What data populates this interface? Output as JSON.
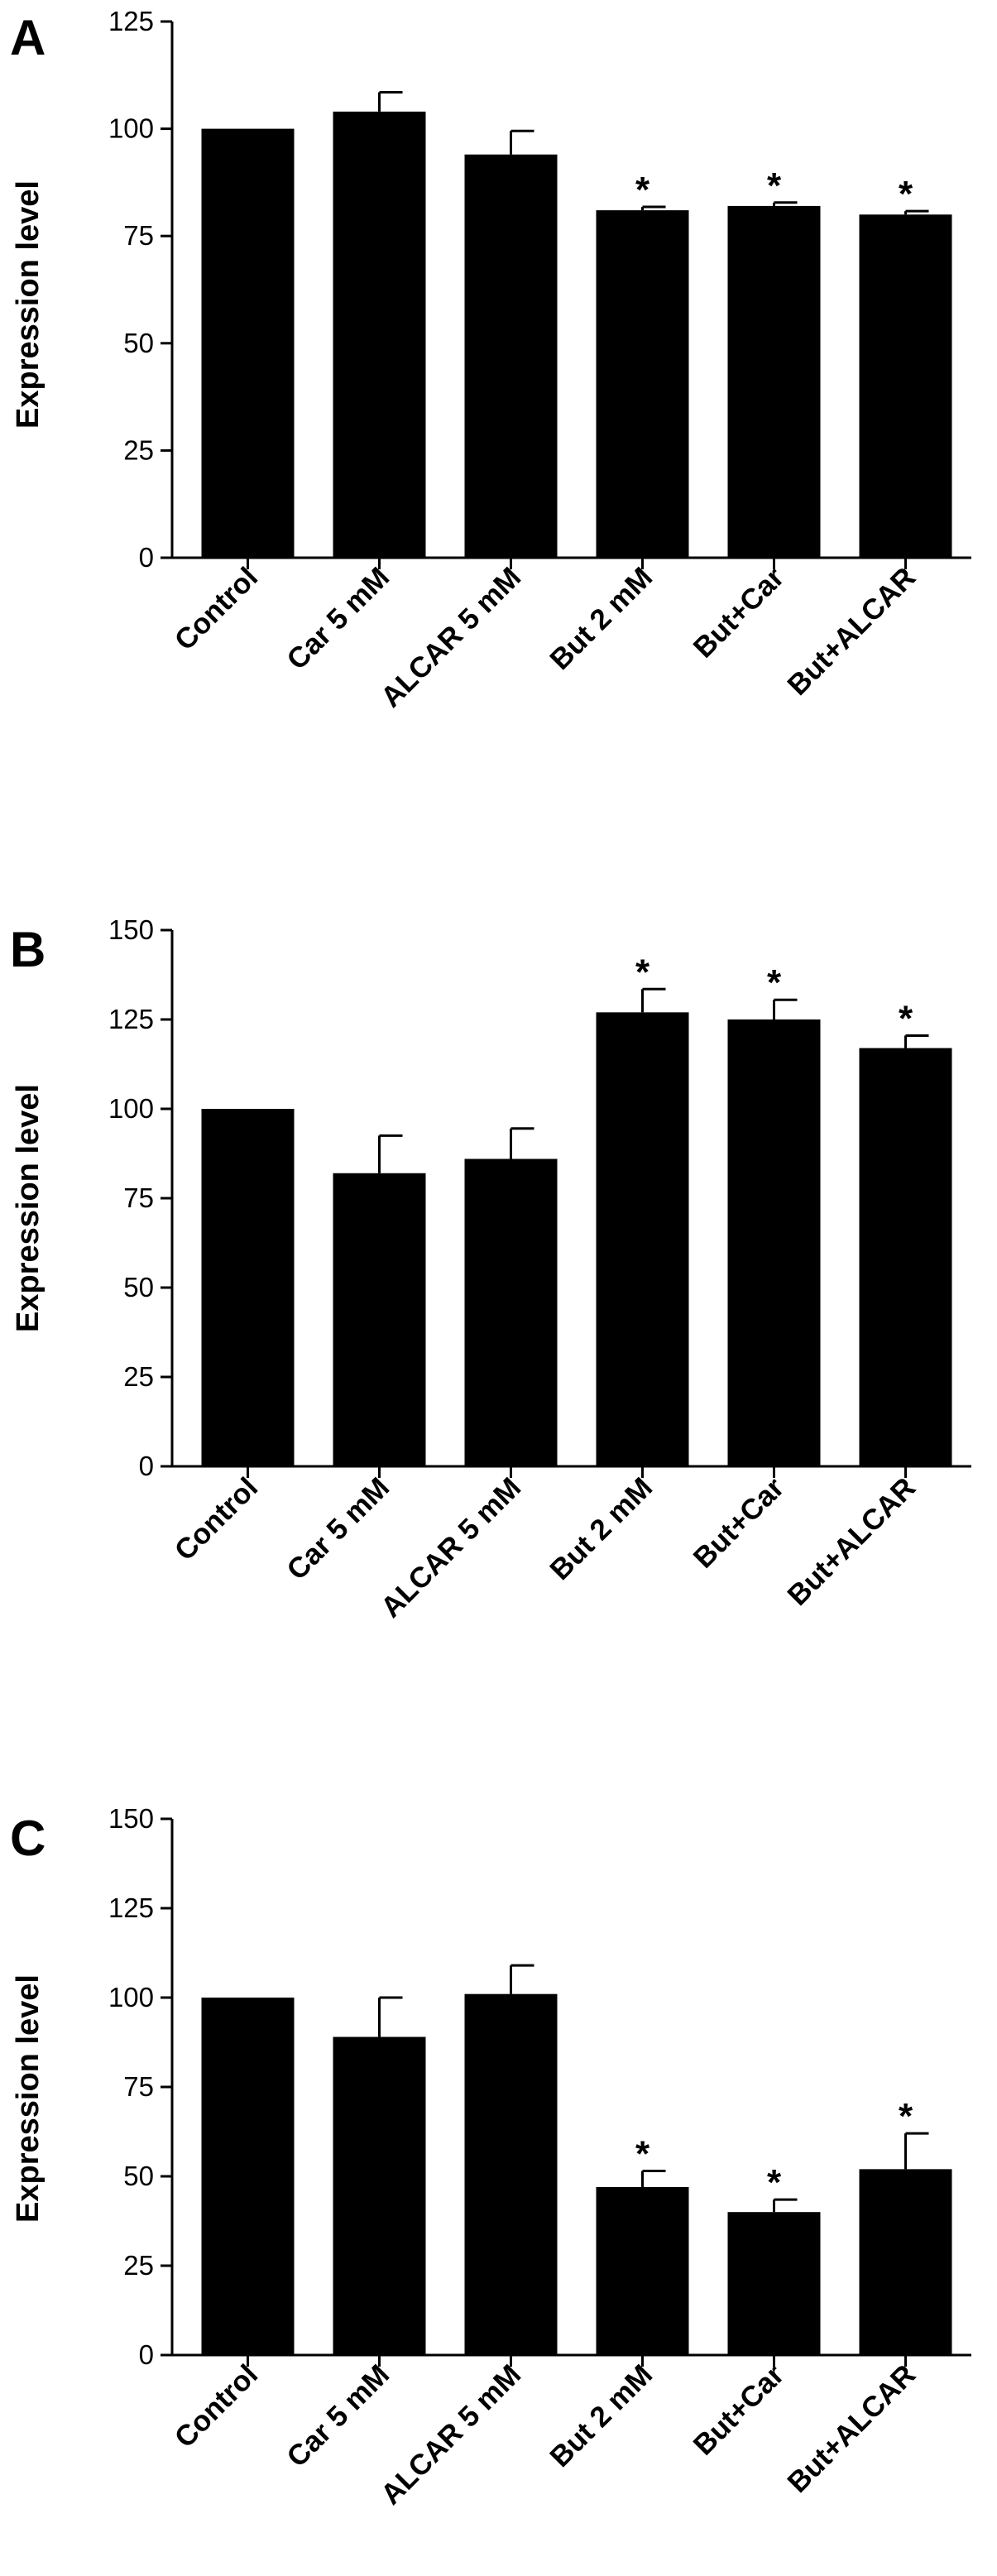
{
  "chart_data": [
    {
      "type": "bar",
      "panel_label": "A",
      "ylabel": "Expression level",
      "ylim": [
        0,
        125
      ],
      "yticks": [
        0,
        25,
        50,
        75,
        100,
        125
      ],
      "categories": [
        "Control",
        "Car 5 mM",
        "ALCAR 5 mM",
        "But 2 mM",
        "But+Car",
        "But+ALCAR"
      ],
      "values": [
        100,
        104,
        94,
        81,
        82,
        80
      ],
      "errors": [
        0,
        4.5,
        5.5,
        0.8,
        0.8,
        0.8
      ],
      "significance": [
        "",
        "",
        "",
        "*",
        "*",
        "*"
      ],
      "bar_color": "#000000"
    },
    {
      "type": "bar",
      "panel_label": "B",
      "ylabel": "Expression level",
      "ylim": [
        0,
        150
      ],
      "yticks": [
        0,
        25,
        50,
        75,
        100,
        125,
        150
      ],
      "categories": [
        "Control",
        "Car 5 mM",
        "ALCAR 5 mM",
        "But 2 mM",
        "But+Car",
        "But+ALCAR"
      ],
      "values": [
        100,
        82,
        86,
        127,
        125,
        117
      ],
      "errors": [
        0,
        10.5,
        8.5,
        6.5,
        5.5,
        3.5
      ],
      "significance": [
        "",
        "",
        "",
        "*",
        "*",
        "*"
      ],
      "bar_color": "#000000"
    },
    {
      "type": "bar",
      "panel_label": "C",
      "ylabel": "Expression level",
      "ylim": [
        0,
        150
      ],
      "yticks": [
        0,
        25,
        50,
        75,
        100,
        125,
        150
      ],
      "categories": [
        "Control",
        "Car 5 mM",
        "ALCAR 5 mM",
        "But 2 mM",
        "But+Car",
        "But+ALCAR"
      ],
      "values": [
        100,
        89,
        101,
        47,
        40,
        52
      ],
      "errors": [
        0,
        11,
        8,
        4.5,
        3.5,
        10
      ],
      "significance": [
        "",
        "",
        "",
        "*",
        "*",
        "*"
      ],
      "bar_color": "#000000"
    }
  ]
}
